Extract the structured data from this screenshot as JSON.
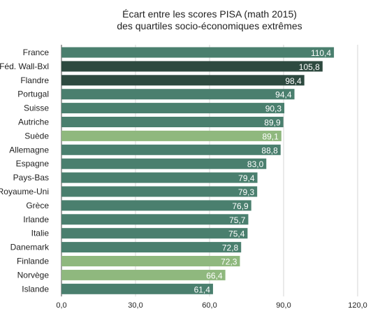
{
  "chart_data": {
    "type": "bar",
    "orientation": "horizontal",
    "title_line1": "Écart entre les scores PISA (math 2015)",
    "title_line2": "des quartiles socio-économiques extrêmes",
    "xlabel": "",
    "ylabel": "",
    "xlim": [
      0,
      120
    ],
    "x_ticks": [
      0,
      30,
      60,
      90,
      120
    ],
    "x_tick_labels": [
      "0,0",
      "30,0",
      "60,0",
      "90,0",
      "120,0"
    ],
    "grid": "vertical",
    "categories": [
      "France",
      "Féd. Wall-Bxl",
      "Flandre",
      "Portugal",
      "Suisse",
      "Autriche",
      "Suède",
      "Allemagne",
      "Espagne",
      "Pays-Bas",
      "Royaume-Uni",
      "Grèce",
      "Irlande",
      "Italie",
      "Danemark",
      "Finlande",
      "Norvège",
      "Islande"
    ],
    "values": [
      110.4,
      105.8,
      98.4,
      94.4,
      90.3,
      89.9,
      89.1,
      88.8,
      83.0,
      79.4,
      79.3,
      76.9,
      75.7,
      75.4,
      72.8,
      72.3,
      66.4,
      61.4
    ],
    "value_labels": [
      "110,4",
      "105,8",
      "98,4",
      "94,4",
      "90,3",
      "89,9",
      "89,1",
      "88,8",
      "83,0",
      "79,4",
      "79,3",
      "76,9",
      "75,7",
      "75,4",
      "72,8",
      "72,3",
      "66,4",
      "61,4"
    ],
    "bar_colors": [
      "#4a7f6e",
      "#2e4a40",
      "#2e4a40",
      "#4a7f6e",
      "#4a7f6e",
      "#4a7f6e",
      "#8fb87e",
      "#4a7f6e",
      "#4a7f6e",
      "#4a7f6e",
      "#4a7f6e",
      "#4a7f6e",
      "#4a7f6e",
      "#4a7f6e",
      "#4a7f6e",
      "#8fb87e",
      "#8fb87e",
      "#4a7f6e"
    ]
  }
}
